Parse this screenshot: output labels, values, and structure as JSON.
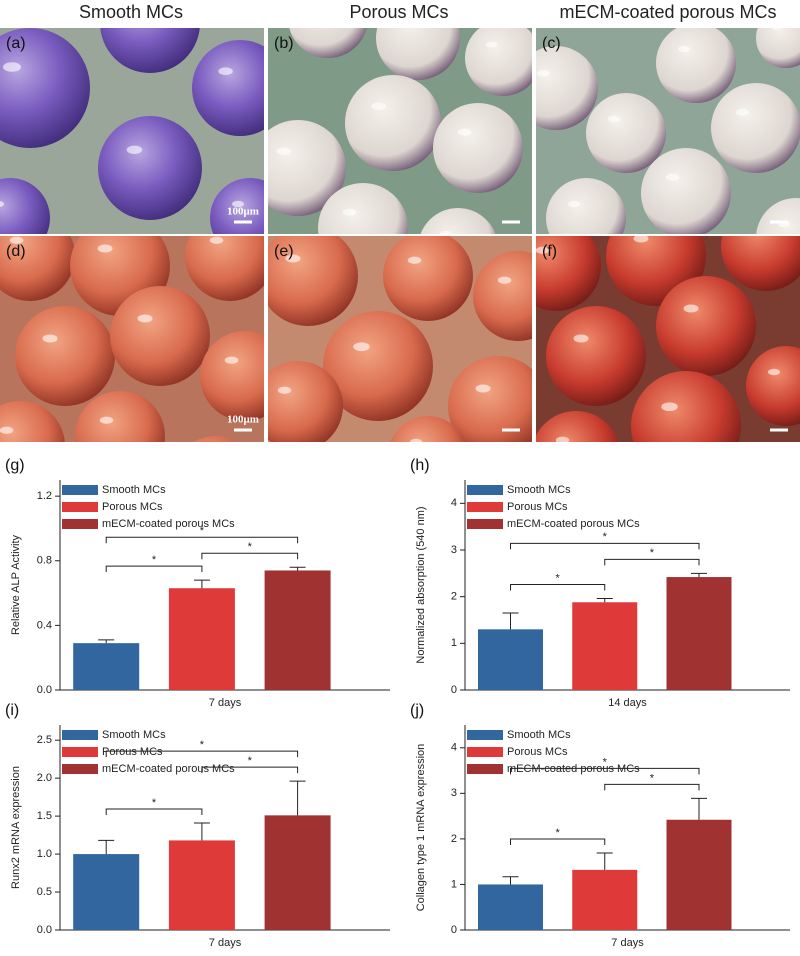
{
  "column_headers": [
    "Smooth MCs",
    "Porous MCs",
    "mECM-coated porous MCs"
  ],
  "photo_panels": [
    {
      "label": "(a)",
      "scale_bar": "100μm"
    },
    {
      "label": "(b)"
    },
    {
      "label": "(c)"
    },
    {
      "label": "(d)",
      "scale_bar": "100μm"
    },
    {
      "label": "(e)"
    },
    {
      "label": "(f)"
    }
  ],
  "chart_data": [
    {
      "type": "bar",
      "panel_label": "(g)",
      "y_label": "Relative ALP Activity",
      "categories": [
        "7 days"
      ],
      "series": [
        {
          "name": "Smooth MCs",
          "color": "#31679e",
          "values": [
            0.29
          ],
          "errors": [
            0.02
          ]
        },
        {
          "name": "Porous MCs",
          "color": "#de3a3a",
          "values": [
            0.63
          ],
          "errors": [
            0.05
          ]
        },
        {
          "name": "mECM-coated porous MCs",
          "color": "#a13232",
          "values": [
            0.74
          ],
          "errors": [
            0.02
          ]
        }
      ],
      "ylim": [
        0,
        1.3
      ],
      "yticks": [
        {
          "value": 0,
          "label": "0.0"
        },
        0.4,
        0.8,
        1.2
      ],
      "annotations": [
        "*",
        "*",
        "*"
      ]
    },
    {
      "type": "bar",
      "panel_label": "(h)",
      "y_label": "Normalized absorption (540 nm)",
      "categories": [
        "14 days"
      ],
      "series": [
        {
          "name": "Smooth MCs",
          "color": "#31679e",
          "values": [
            1.3
          ],
          "errors": [
            0.35
          ]
        },
        {
          "name": "Porous MCs",
          "color": "#de3a3a",
          "values": [
            1.88
          ],
          "errors": [
            0.08
          ]
        },
        {
          "name": "mECM-coated porous MCs",
          "color": "#a13232",
          "values": [
            2.42
          ],
          "errors": [
            0.08
          ]
        }
      ],
      "ylim": [
        0,
        4.5
      ],
      "yticks": [
        0,
        1,
        2,
        3,
        4
      ],
      "annotations": [
        "*",
        "*",
        "*"
      ]
    },
    {
      "type": "bar",
      "panel_label": "(i)",
      "y_label": "Runx2 mRNA expression",
      "categories": [
        "7 days"
      ],
      "series": [
        {
          "name": "Smooth MCs",
          "color": "#31679e",
          "values": [
            1.0
          ],
          "errors": [
            0.18
          ]
        },
        {
          "name": "Porous MCs",
          "color": "#de3a3a",
          "values": [
            1.18
          ],
          "errors": [
            0.23
          ]
        },
        {
          "name": "mECM-coated porous MCs",
          "color": "#a13232",
          "values": [
            1.51
          ],
          "errors": [
            0.45
          ]
        }
      ],
      "ylim": [
        0,
        2.7
      ],
      "yticks": [
        {
          "value": 0,
          "label": "0.0"
        },
        0.5,
        {
          "value": 1,
          "label": "1.0"
        },
        1.5,
        {
          "value": 2,
          "label": "2.0"
        },
        2.5
      ],
      "annotations": [
        "*",
        "*",
        "*"
      ]
    },
    {
      "type": "bar",
      "panel_label": "(j)",
      "y_label": "Collagen type 1 mRNA expression",
      "categories": [
        "7 days"
      ],
      "series": [
        {
          "name": "Smooth MCs",
          "color": "#31679e",
          "values": [
            1.0
          ],
          "errors": [
            0.17
          ]
        },
        {
          "name": "Porous MCs",
          "color": "#de3a3a",
          "values": [
            1.32
          ],
          "errors": [
            0.37
          ]
        },
        {
          "name": "mECM-coated porous MCs",
          "color": "#a13232",
          "values": [
            2.42
          ],
          "errors": [
            0.47
          ]
        }
      ],
      "ylim": [
        0,
        4.5
      ],
      "yticks": [
        0,
        1,
        2,
        3,
        4
      ],
      "annotations": [
        "*",
        "*",
        "*"
      ]
    }
  ]
}
